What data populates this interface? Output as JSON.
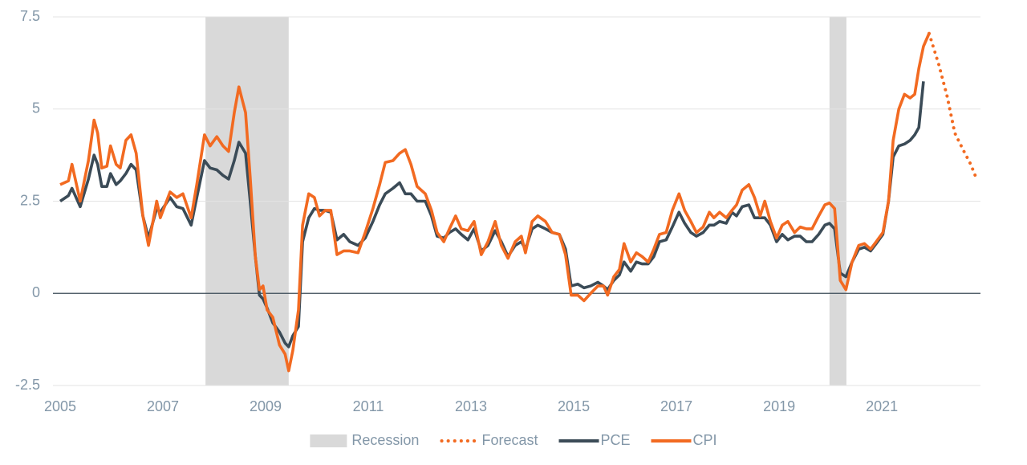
{
  "chart_data": {
    "type": "line",
    "x": [
      2005.0,
      2005.16,
      2005.23,
      2005.39,
      2005.55,
      2005.66,
      2005.73,
      2005.81,
      2005.91,
      2005.98,
      2006.09,
      2006.17,
      2006.28,
      2006.38,
      2006.48,
      2006.61,
      2006.72,
      2006.88,
      2006.95,
      2007.14,
      2007.27,
      2007.39,
      2007.55,
      2007.66,
      2007.81,
      2007.92,
      2008.05,
      2008.17,
      2008.28,
      2008.39,
      2008.48,
      2008.61,
      2008.7,
      2008.8,
      2008.88,
      2008.95,
      2009.03,
      2009.14,
      2009.27,
      2009.38,
      2009.45,
      2009.53,
      2009.64,
      2009.72,
      2009.84,
      2009.95,
      2010.05,
      2010.16,
      2010.27,
      2010.39,
      2010.52,
      2010.64,
      2010.8,
      2010.94,
      2011.09,
      2011.22,
      2011.33,
      2011.48,
      2011.61,
      2011.72,
      2011.83,
      2011.95,
      2012.11,
      2012.23,
      2012.34,
      2012.47,
      2012.58,
      2012.7,
      2012.81,
      2012.94,
      2013.06,
      2013.2,
      2013.33,
      2013.47,
      2013.59,
      2013.72,
      2013.86,
      2013.98,
      2014.06,
      2014.19,
      2014.3,
      2014.45,
      2014.58,
      2014.72,
      2014.84,
      2014.95,
      2015.08,
      2015.2,
      2015.33,
      2015.47,
      2015.58,
      2015.66,
      2015.78,
      2015.89,
      2015.98,
      2016.11,
      2016.22,
      2016.33,
      2016.45,
      2016.56,
      2016.67,
      2016.8,
      2016.92,
      2017.05,
      2017.16,
      2017.28,
      2017.39,
      2017.52,
      2017.64,
      2017.73,
      2017.84,
      2017.97,
      2018.08,
      2018.17,
      2018.28,
      2018.41,
      2018.52,
      2018.63,
      2018.72,
      2018.83,
      2018.95,
      2019.06,
      2019.17,
      2019.3,
      2019.41,
      2019.53,
      2019.64,
      2019.77,
      2019.89,
      2019.98,
      2020.08,
      2020.19,
      2020.3,
      2020.42,
      2020.55,
      2020.66,
      2020.78,
      2020.89,
      2021.02,
      2021.13,
      2021.22,
      2021.33,
      2021.44,
      2021.55,
      2021.64,
      2021.72,
      2021.81,
      2021.92
    ],
    "recessions": {
      "name": "Recession",
      "color": "#d9d9d9",
      "spans": [
        [
          2007.83,
          2009.45
        ],
        [
          2019.98,
          2020.31
        ]
      ]
    },
    "series": [
      {
        "name": "Forecast",
        "color": "#f26a21",
        "style": "dotted",
        "x": [
          2021.92,
          2022.11,
          2022.27,
          2022.42,
          2022.58,
          2022.73,
          2022.86
        ],
        "values": [
          7.05,
          6.2,
          5.35,
          4.35,
          3.9,
          3.5,
          3.05
        ]
      },
      {
        "name": "PCE",
        "color": "#3b4b57",
        "style": "solid",
        "values": [
          2.5,
          2.65,
          2.85,
          2.35,
          3.1,
          3.75,
          3.5,
          2.9,
          2.9,
          3.25,
          2.95,
          3.05,
          3.25,
          3.5,
          3.35,
          2.1,
          1.5,
          2.3,
          2.2,
          2.6,
          2.35,
          2.3,
          1.85,
          2.6,
          3.6,
          3.4,
          3.35,
          3.2,
          3.1,
          3.6,
          4.1,
          3.8,
          2.5,
          1.0,
          -0.05,
          -0.15,
          -0.4,
          -0.8,
          -1.05,
          -1.35,
          -1.45,
          -1.15,
          -0.9,
          1.4,
          2.05,
          2.3,
          2.25,
          2.25,
          2.2,
          1.45,
          1.6,
          1.4,
          1.3,
          1.5,
          1.95,
          2.4,
          2.7,
          2.85,
          3.0,
          2.7,
          2.7,
          2.5,
          2.5,
          2.1,
          1.55,
          1.5,
          1.65,
          1.75,
          1.6,
          1.45,
          1.75,
          1.15,
          1.3,
          1.7,
          1.4,
          1.0,
          1.3,
          1.4,
          1.2,
          1.75,
          1.85,
          1.75,
          1.65,
          1.6,
          1.2,
          0.2,
          0.25,
          0.15,
          0.2,
          0.3,
          0.2,
          0.1,
          0.35,
          0.5,
          0.85,
          0.6,
          0.85,
          0.8,
          0.8,
          1.0,
          1.4,
          1.45,
          1.8,
          2.2,
          1.9,
          1.65,
          1.55,
          1.65,
          1.85,
          1.85,
          1.95,
          1.9,
          2.2,
          2.1,
          2.35,
          2.4,
          2.05,
          2.05,
          2.05,
          1.85,
          1.4,
          1.6,
          1.45,
          1.55,
          1.55,
          1.4,
          1.4,
          1.6,
          1.85,
          1.9,
          1.75,
          0.55,
          0.45,
          0.85,
          1.2,
          1.25,
          1.15,
          1.35,
          1.6,
          2.5,
          3.7,
          4.0,
          4.05,
          4.15,
          4.3,
          4.5,
          5.75,
          null
        ]
      },
      {
        "name": "CPI",
        "color": "#f26a21",
        "style": "solid",
        "values": [
          2.95,
          3.05,
          3.5,
          2.5,
          3.6,
          4.7,
          4.35,
          3.4,
          3.45,
          4.0,
          3.5,
          3.4,
          4.15,
          4.3,
          3.8,
          2.1,
          1.3,
          2.5,
          2.05,
          2.75,
          2.6,
          2.7,
          2.05,
          2.95,
          4.3,
          4.0,
          4.25,
          4.0,
          3.85,
          4.9,
          5.6,
          4.9,
          3.15,
          1.0,
          0.1,
          0.2,
          -0.45,
          -0.65,
          -1.4,
          -1.65,
          -2.1,
          -1.55,
          -0.45,
          1.85,
          2.7,
          2.6,
          2.1,
          2.25,
          2.25,
          1.05,
          1.15,
          1.15,
          1.1,
          1.65,
          2.3,
          2.95,
          3.55,
          3.6,
          3.8,
          3.9,
          3.5,
          2.9,
          2.7,
          2.25,
          1.65,
          1.4,
          1.75,
          2.1,
          1.75,
          1.7,
          1.95,
          1.05,
          1.4,
          1.95,
          1.3,
          0.95,
          1.4,
          1.55,
          1.1,
          1.95,
          2.1,
          1.95,
          1.65,
          1.6,
          1.05,
          -0.05,
          -0.05,
          -0.2,
          0,
          0.2,
          0.2,
          -0.05,
          0.45,
          0.65,
          1.35,
          0.85,
          1.1,
          1.0,
          0.85,
          1.2,
          1.6,
          1.65,
          2.25,
          2.7,
          2.25,
          1.95,
          1.65,
          1.8,
          2.2,
          2.05,
          2.2,
          2.05,
          2.25,
          2.4,
          2.8,
          2.95,
          2.6,
          2.1,
          2.5,
          1.95,
          1.5,
          1.85,
          1.95,
          1.65,
          1.8,
          1.75,
          1.75,
          2.1,
          2.4,
          2.45,
          2.3,
          0.35,
          0.1,
          0.85,
          1.3,
          1.35,
          1.2,
          1.4,
          1.65,
          2.5,
          4.15,
          5.0,
          5.4,
          5.3,
          5.4,
          6.1,
          6.7,
          7.05
        ]
      }
    ],
    "xlim": [
      2005,
      2022.92
    ],
    "xticks": [
      2005,
      2007,
      2009,
      2011,
      2013,
      2015,
      2017,
      2019,
      2021
    ],
    "ylim": [
      -2.5,
      7.5
    ],
    "yticks": [
      -2.5,
      0,
      2.5,
      5,
      7.5
    ],
    "grid": true,
    "legend": "bottom"
  }
}
